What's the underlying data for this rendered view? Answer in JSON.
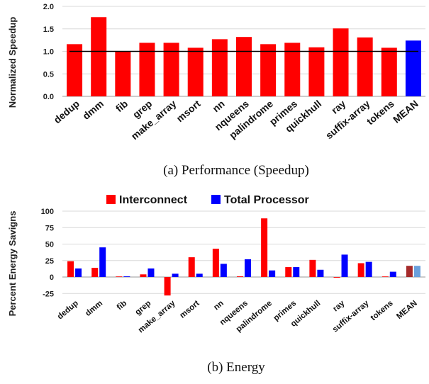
{
  "chart_data": [
    {
      "type": "bar",
      "ylabel": "Normalized Speedup",
      "caption": "(a) Performance (Speedup)",
      "ylim": [
        0,
        2.0
      ],
      "yticks": [
        "0.0",
        "0.5",
        "1.0",
        "1.5",
        "2.0"
      ],
      "reference_line": 1.0,
      "grid": "horizontal",
      "categories": [
        "dedup",
        "dmm",
        "fib",
        "grep",
        "make_array",
        "msort",
        "nn",
        "nqueens",
        "palindrome",
        "primes",
        "quickhull",
        "ray",
        "suffix-array",
        "tokens",
        "MEAN"
      ],
      "values": [
        1.16,
        1.76,
        1.0,
        1.19,
        1.19,
        1.08,
        1.27,
        1.32,
        1.16,
        1.19,
        1.09,
        1.51,
        1.31,
        1.08,
        1.24
      ],
      "colors": {
        "default": "#ff0000",
        "mean": "#0000ff"
      }
    },
    {
      "type": "bar",
      "ylabel": "Percent Energy Savigns",
      "caption": "(b) Energy",
      "ylim": [
        -40,
        100
      ],
      "yticks": [
        "-25",
        "0",
        "25",
        "50",
        "75",
        "100"
      ],
      "grid": "horizontal",
      "legend_position": "top",
      "categories": [
        "dedup",
        "dmm",
        "fib",
        "grep",
        "make_array",
        "msort",
        "nn",
        "nqueens",
        "palindrome",
        "primes",
        "quickhull",
        "ray",
        "suffix-array",
        "tokens",
        "MEAN"
      ],
      "series": [
        {
          "name": "Interconnect",
          "color": "#ff0000",
          "mean_color": "#a52a2a",
          "values": [
            24,
            14,
            0,
            4,
            -28,
            30,
            43,
            1,
            89,
            15,
            26,
            -1,
            21,
            0,
            17
          ]
        },
        {
          "name": "Total Processor",
          "color": "#0000ff",
          "mean_color": "#6aa0dc",
          "values": [
            13,
            45,
            1,
            13,
            5,
            5,
            20,
            27,
            10,
            15,
            11,
            34,
            23,
            8,
            17
          ]
        }
      ]
    }
  ]
}
